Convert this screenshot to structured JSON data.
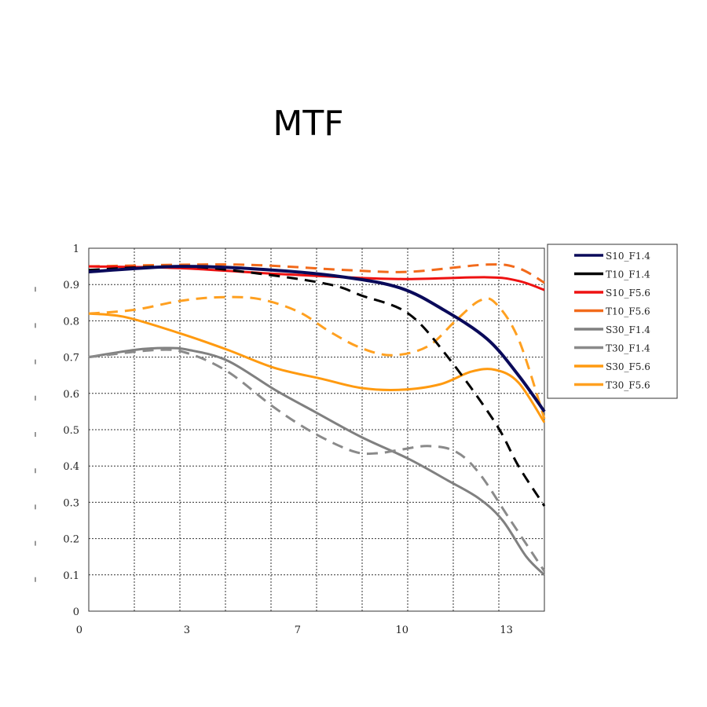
{
  "chart_data": {
    "type": "line",
    "title": "MTF",
    "xlabel": "",
    "ylabel": "",
    "xlim": [
      0,
      14.4
    ],
    "ylim": [
      0,
      1
    ],
    "grid": true,
    "legend_position": "right",
    "x_tick_labels": [
      {
        "label": "0",
        "value": -0.3
      },
      {
        "label": "3",
        "value": 3.1
      },
      {
        "label": "7",
        "value": 6.6
      },
      {
        "label": "10",
        "value": 9.9
      },
      {
        "label": "13",
        "value": 13.2
      }
    ],
    "y_ticks": [
      0,
      0.1,
      0.2,
      0.3,
      0.4,
      0.5,
      0.6,
      0.7,
      0.8,
      0.9,
      1
    ],
    "y_tick_labels": [
      "0",
      "0.1",
      "0.2",
      "0.3",
      "0.4",
      "0.5",
      "0.6",
      "0.7",
      "0.8",
      "0.9",
      "1"
    ],
    "series": [
      {
        "name": "S10_F1.4",
        "color": "#0a0a5a",
        "dash": false,
        "width": 4,
        "x": [
          0,
          2.9,
          5.78,
          8.12,
          9.86,
          11.22,
          12.59,
          13.58,
          14.4
        ],
        "y": [
          0.935,
          0.95,
          0.94,
          0.92,
          0.89,
          0.83,
          0.75,
          0.65,
          0.55
        ]
      },
      {
        "name": "T10_F1.4",
        "color": "#000000",
        "dash": true,
        "width": 3,
        "x": [
          0,
          2.9,
          5.39,
          7.62,
          8.61,
          10.1,
          11.35,
          12.84,
          13.58,
          14.4
        ],
        "y": [
          0.94,
          0.95,
          0.93,
          0.9,
          0.87,
          0.82,
          0.7,
          0.52,
          0.4,
          0.29
        ]
      },
      {
        "name": "S10_F5.6",
        "color": "#ee1111",
        "dash": false,
        "width": 3,
        "x": [
          0,
          2.9,
          5.78,
          8.12,
          10.1,
          12.59,
          13.58,
          14.4
        ],
        "y": [
          0.95,
          0.945,
          0.93,
          0.92,
          0.915,
          0.92,
          0.91,
          0.885
        ]
      },
      {
        "name": "T10_F5.6",
        "color": "#f26a1b",
        "dash": true,
        "width": 3,
        "x": [
          0,
          4.64,
          8.12,
          10.1,
          12.59,
          13.58,
          14.4
        ],
        "y": [
          0.95,
          0.955,
          0.94,
          0.935,
          0.955,
          0.945,
          0.905
        ]
      },
      {
        "name": "S30_F1.4",
        "color": "#808080",
        "dash": false,
        "width": 3,
        "x": [
          0,
          1.46,
          2.41,
          3.15,
          4.39,
          5.88,
          7.13,
          8.61,
          10.1,
          11.35,
          12.34,
          13.08,
          13.83,
          14.4
        ],
        "y": [
          0.7,
          0.72,
          0.725,
          0.72,
          0.69,
          0.61,
          0.55,
          0.48,
          0.42,
          0.36,
          0.31,
          0.25,
          0.15,
          0.1
        ]
      },
      {
        "name": "T30_F1.4",
        "color": "#8a8a8a",
        "dash": true,
        "width": 3,
        "x": [
          0,
          2.16,
          3.15,
          4.39,
          5.88,
          7.13,
          8.37,
          9.11,
          9.86,
          10.72,
          11.59,
          12.34,
          13.33,
          14.4
        ],
        "y": [
          0.7,
          0.72,
          0.71,
          0.66,
          0.56,
          0.49,
          0.44,
          0.435,
          0.445,
          0.455,
          0.44,
          0.38,
          0.25,
          0.11
        ]
      },
      {
        "name": "S30_F5.6",
        "color": "#ff9a10",
        "dash": false,
        "width": 3,
        "x": [
          0,
          1.17,
          2.9,
          4.39,
          5.88,
          7.37,
          8.61,
          9.86,
          11.1,
          12.09,
          12.84,
          13.58,
          14.4
        ],
        "y": [
          0.82,
          0.81,
          0.765,
          0.72,
          0.67,
          0.64,
          0.615,
          0.61,
          0.625,
          0.66,
          0.665,
          0.63,
          0.52
        ]
      },
      {
        "name": "T30_F5.6",
        "color": "#ffa020",
        "dash": true,
        "width": 3,
        "x": [
          0,
          1.42,
          2.9,
          4.15,
          5.39,
          6.63,
          7.62,
          8.61,
          9.61,
          10.72,
          11.59,
          12.34,
          12.84,
          13.58,
          14.4
        ],
        "y": [
          0.82,
          0.83,
          0.855,
          0.865,
          0.86,
          0.825,
          0.77,
          0.725,
          0.705,
          0.73,
          0.8,
          0.855,
          0.85,
          0.75,
          0.53
        ]
      }
    ]
  }
}
